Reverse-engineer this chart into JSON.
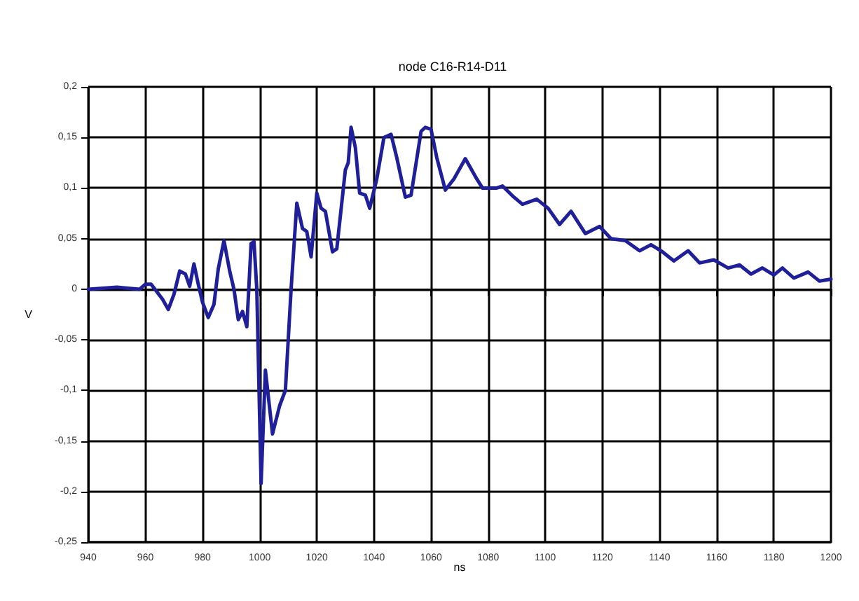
{
  "chart_data": {
    "type": "line",
    "title": "node C16-R14-D11",
    "xlabel": "ns",
    "ylabel": "V",
    "xlim": [
      940,
      1200
    ],
    "xticks": [
      940,
      960,
      980,
      1000,
      1020,
      1040,
      1060,
      1080,
      1100,
      1120,
      1140,
      1160,
      1180,
      1200
    ],
    "ylim": [
      -0.25,
      0.2
    ],
    "yticks": [
      {
        "value": -0.25,
        "label": "-0,25"
      },
      {
        "value": -0.2,
        "label": "-0,2"
      },
      {
        "value": -0.15,
        "label": "-0,15"
      },
      {
        "value": -0.1,
        "label": "-0,1"
      },
      {
        "value": -0.05,
        "label": "-0,05"
      },
      {
        "value": 0,
        "label": "0"
      },
      {
        "value": 0.05,
        "label": "0,05"
      },
      {
        "value": 0.1,
        "label": "0,1"
      },
      {
        "value": 0.15,
        "label": "0,15"
      },
      {
        "value": 0.2,
        "label": "0,2"
      }
    ],
    "grid": true,
    "marker": "none",
    "line_style": "solid",
    "series": [
      {
        "color": "#1f1f99",
        "x": [
          940,
          950,
          958,
          960,
          962,
          966,
          968,
          970,
          972,
          974,
          975.5,
          977,
          978.5,
          980,
          982,
          984,
          985.5,
          987.5,
          989.5,
          991,
          992.5,
          994,
          995.5,
          997,
          998,
          999,
          1000.5,
          1002,
          1004.5,
          1007,
          1009,
          1011,
          1013,
          1015,
          1016.5,
          1018,
          1020,
          1021.5,
          1023,
          1025.5,
          1027,
          1030,
          1031,
          1032,
          1033.5,
          1035,
          1037,
          1038.5,
          1041,
          1043.5,
          1046,
          1048,
          1051,
          1053,
          1056.5,
          1058,
          1060,
          1062,
          1065,
          1068,
          1072,
          1076,
          1078,
          1083,
          1085,
          1089,
          1092,
          1097,
          1101,
          1105,
          1109,
          1114,
          1119,
          1123,
          1128,
          1133,
          1137,
          1141,
          1145,
          1150,
          1154,
          1159,
          1164,
          1168,
          1172,
          1176,
          1180,
          1183,
          1187,
          1192,
          1196,
          1200
        ],
        "values": [
          0,
          0.002,
          0,
          0.005,
          0.005,
          -0.01,
          -0.02,
          -0.005,
          0.018,
          0.015,
          0.003,
          0.025,
          0.005,
          -0.013,
          -0.028,
          -0.015,
          0.02,
          0.048,
          0.018,
          0,
          -0.03,
          -0.022,
          -0.037,
          0.045,
          0.047,
          0,
          -0.192,
          -0.08,
          -0.143,
          -0.115,
          -0.1,
          0,
          0.085,
          0.06,
          0.057,
          0.032,
          0.095,
          0.08,
          0.077,
          0.037,
          0.04,
          0.118,
          0.125,
          0.16,
          0.14,
          0.095,
          0.093,
          0.08,
          0.109,
          0.15,
          0.153,
          0.13,
          0.091,
          0.093,
          0.156,
          0.16,
          0.158,
          0.13,
          0.098,
          0.109,
          0.129,
          0.109,
          0.1,
          0.1,
          0.102,
          0.091,
          0.084,
          0.089,
          0.08,
          0.064,
          0.077,
          0.055,
          0.062,
          0.05,
          0.048,
          0.038,
          0.044,
          0.037,
          0.028,
          0.038,
          0.026,
          0.029,
          0.021,
          0.024,
          0.015,
          0.021,
          0.014,
          0.021,
          0.011,
          0.017,
          0.008,
          0.01
        ]
      }
    ]
  }
}
